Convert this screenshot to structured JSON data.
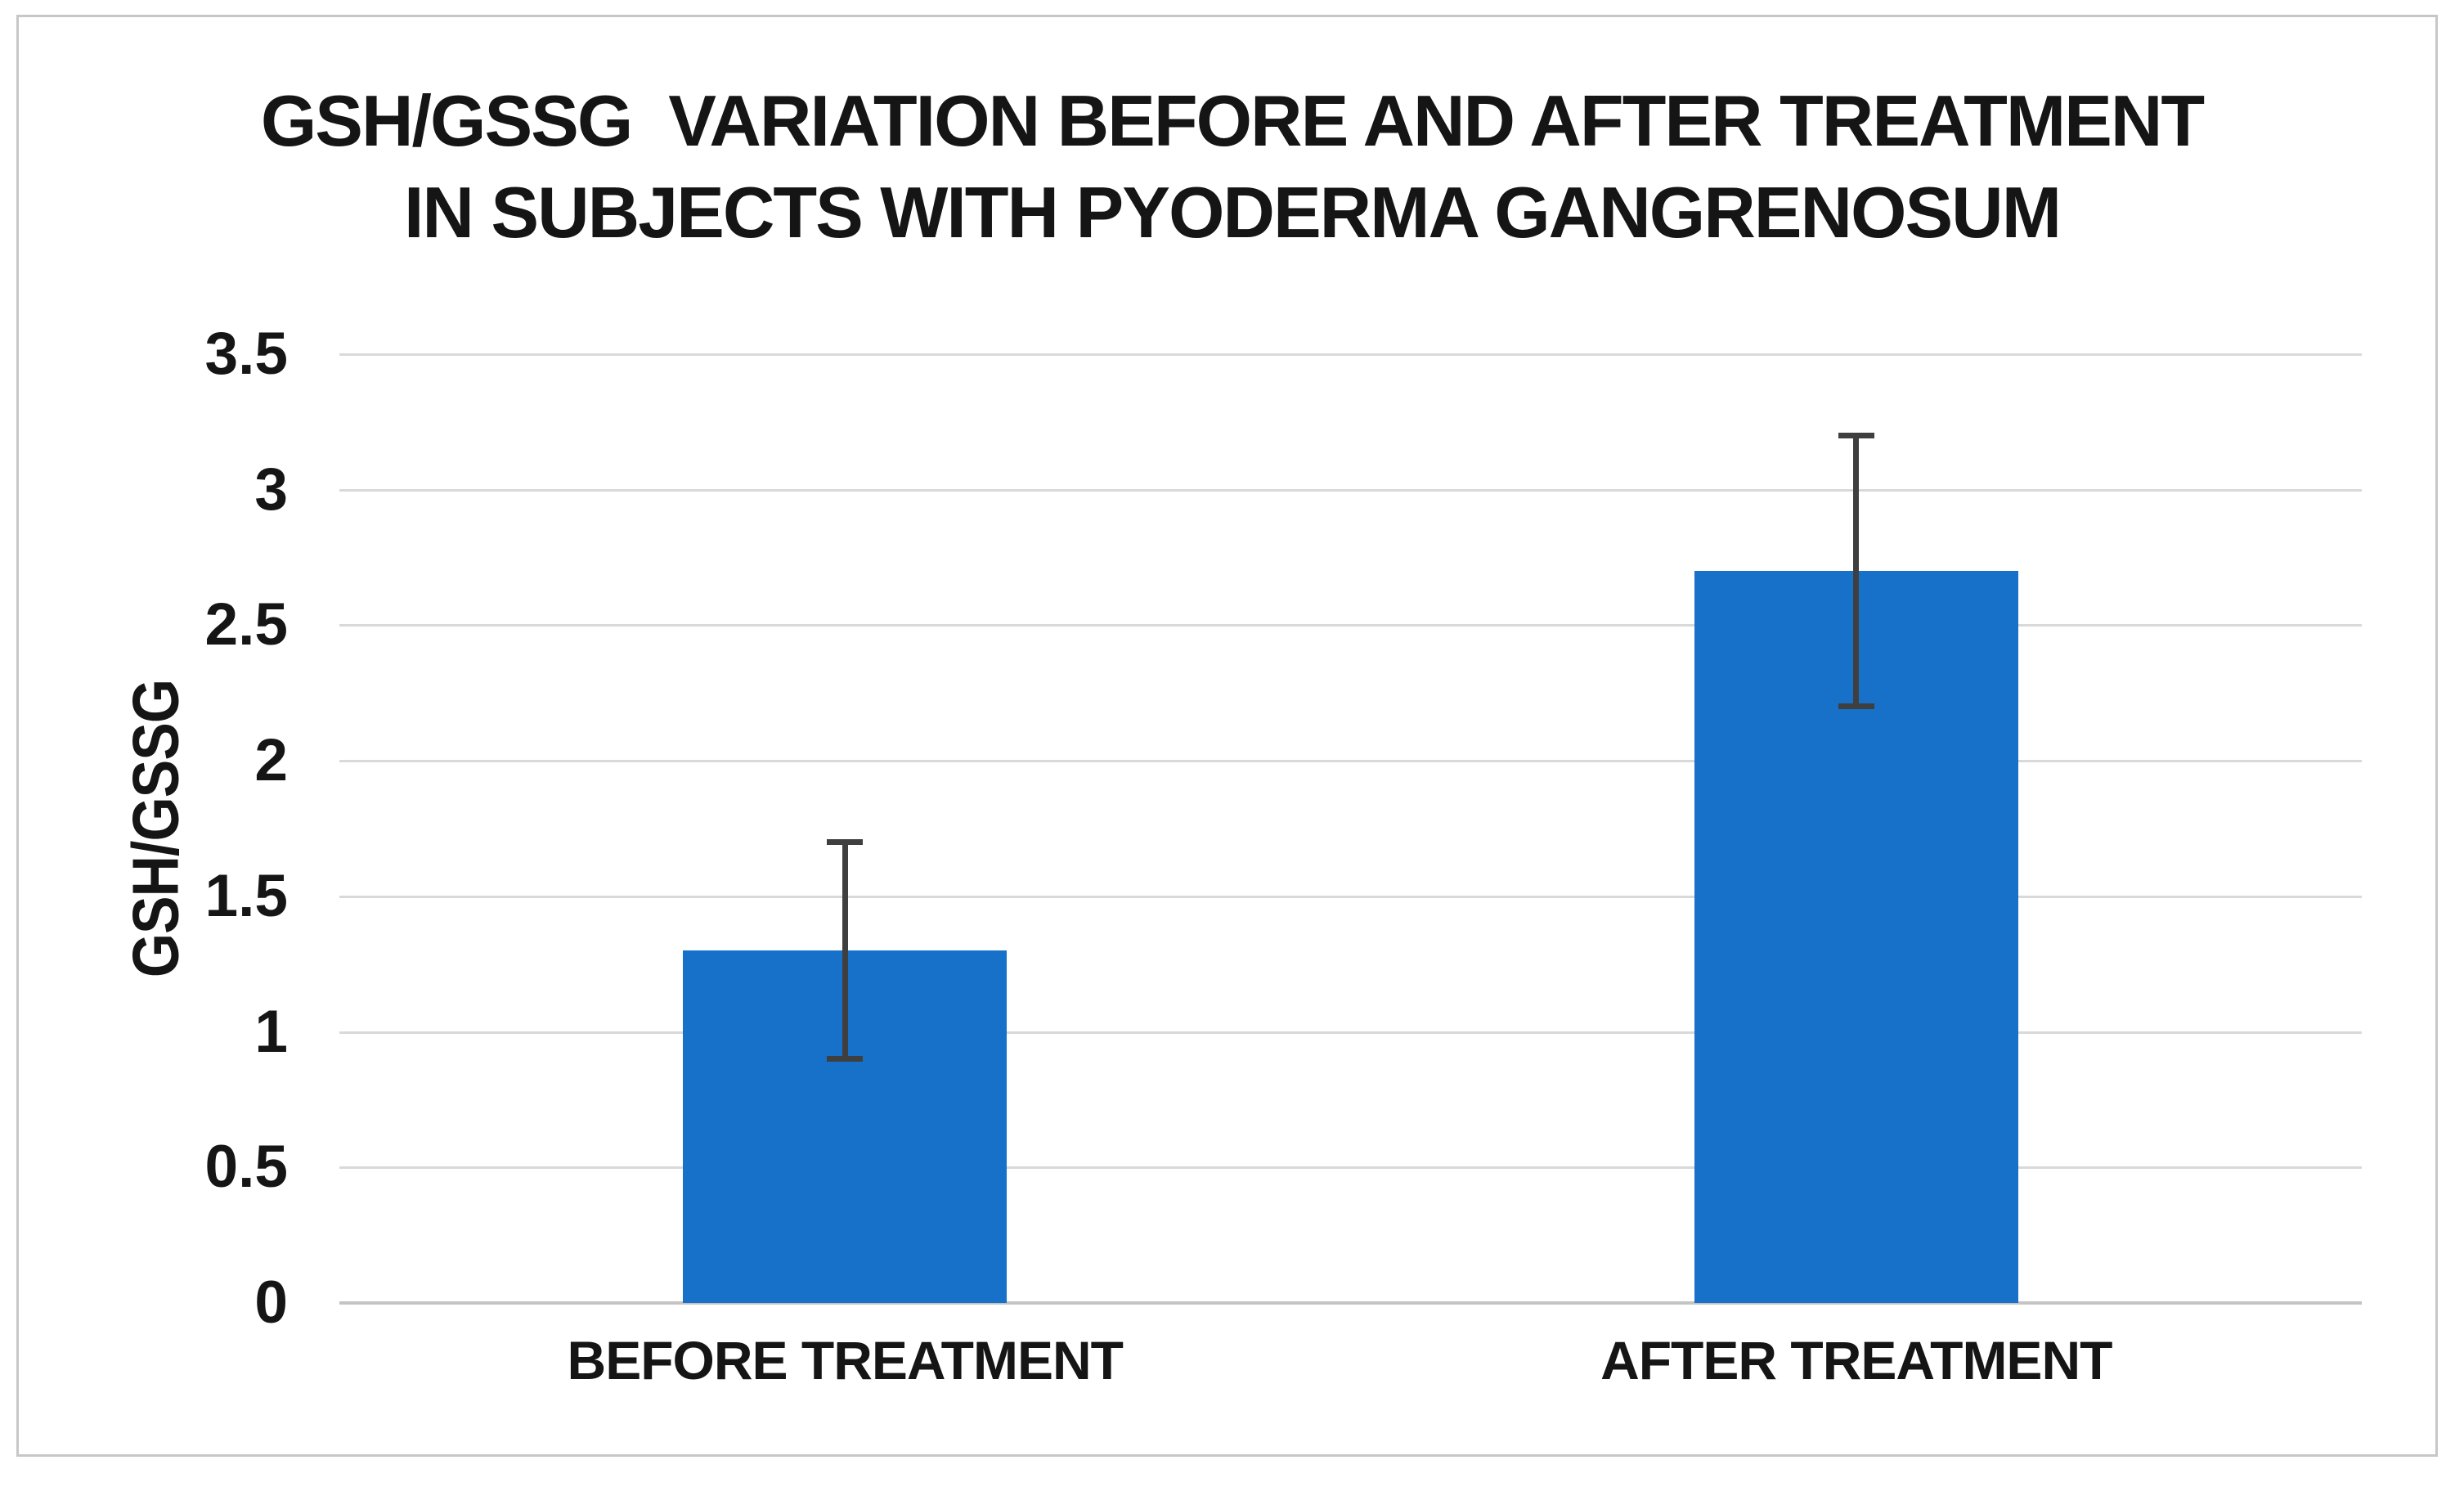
{
  "chart_data": {
    "type": "bar",
    "title": "GSH/GSSG  VARIATION BEFORE AND AFTER TREATMENT IN SUBJECTS WITH PYODERMA GANGRENOSUM",
    "title_lines": [
      "GSH/GSSG  VARIATION BEFORE AND AFTER TREATMENT",
      "IN SUBJECTS WITH PYODERMA GANGRENOSUM"
    ],
    "categories": [
      "BEFORE TREATMENT",
      "AFTER TREATMENT"
    ],
    "values": [
      1.3,
      2.7
    ],
    "errors": [
      0.4,
      0.5
    ],
    "error_range": [
      {
        "low": 0.9,
        "high": 1.7
      },
      {
        "low": 2.2,
        "high": 3.2
      }
    ],
    "xlabel": "",
    "ylabel": "GSH/GSSG",
    "ylim": [
      0,
      3.5
    ],
    "yticks": [
      0,
      0.5,
      1,
      1.5,
      2,
      2.5,
      3,
      3.5
    ],
    "ytick_labels": [
      "0",
      "0.5",
      "1",
      "1.5",
      "2",
      "2.5",
      "3",
      "3.5"
    ],
    "grid": true,
    "legend": false,
    "colors": {
      "bar": "#1771C8",
      "error_bar": "#3F3F3F",
      "gridline": "#D9D9D9",
      "axis_line": "#C4C4C4",
      "text": "#151515",
      "figure_border": "#C7C7C7",
      "background": "#FFFFFF"
    }
  }
}
